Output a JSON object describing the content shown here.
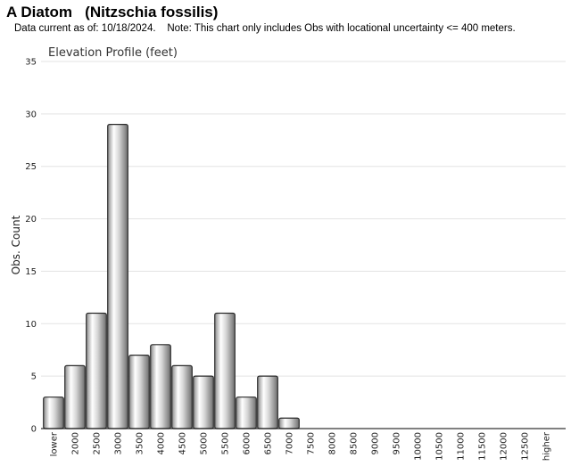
{
  "header": {
    "title": "A Diatom   (Nitzschia fossilis)",
    "subtitle": "Data current as of: 10/18/2024.    Note: This chart only includes Obs with locational uncertainty <= 400 meters."
  },
  "chart_data": {
    "type": "bar",
    "title": "Elevation Profile (feet)",
    "xlabel": "",
    "ylabel": "Obs. Count",
    "ylim": [
      0,
      35
    ],
    "yticks": [
      0,
      5,
      10,
      15,
      20,
      25,
      30,
      35
    ],
    "grid": true,
    "categories": [
      "lower",
      "2000",
      "2500",
      "3000",
      "3500",
      "4000",
      "4500",
      "5000",
      "5500",
      "6000",
      "6500",
      "7000",
      "7500",
      "8000",
      "8500",
      "9000",
      "9500",
      "10000",
      "10500",
      "11000",
      "11500",
      "12000",
      "12500",
      "higher"
    ],
    "values": [
      3,
      6,
      11,
      29,
      7,
      8,
      6,
      5,
      11,
      3,
      5,
      1,
      0,
      0,
      0,
      0,
      0,
      0,
      0,
      0,
      0,
      0,
      0,
      0
    ]
  }
}
